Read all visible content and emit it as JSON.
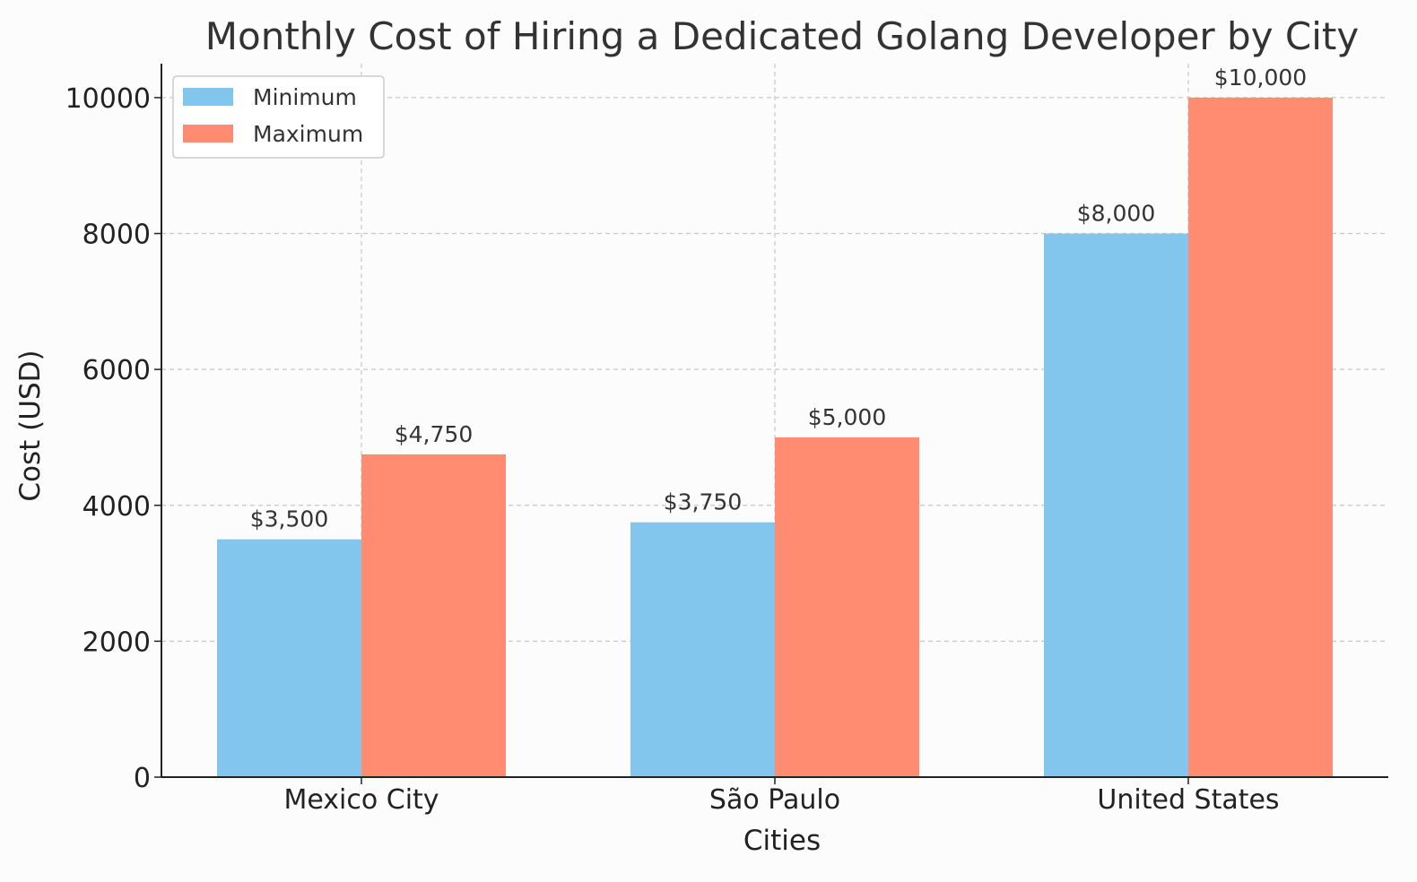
{
  "chart_data": {
    "type": "bar",
    "title": "Monthly Cost of Hiring a Dedicated Golang Developer by City",
    "xlabel": "Cities",
    "ylabel": "Cost (USD)",
    "categories": [
      "Mexico City",
      "São Paulo",
      "United States"
    ],
    "series": [
      {
        "name": "Minimum",
        "color": "#82c6ee",
        "values": [
          3500,
          3750,
          8000
        ],
        "labels": [
          "$3,500",
          "$3,750",
          "$8,000"
        ]
      },
      {
        "name": "Maximum",
        "color": "#ff8c70",
        "values": [
          4750,
          5000,
          10000
        ],
        "labels": [
          "$4,750",
          "$5,000",
          "$10,000"
        ]
      }
    ],
    "ylim": [
      0,
      10500
    ],
    "yticks": [
      0,
      2000,
      4000,
      6000,
      8000,
      10000
    ],
    "grid": true,
    "legend_position": "top-left"
  }
}
